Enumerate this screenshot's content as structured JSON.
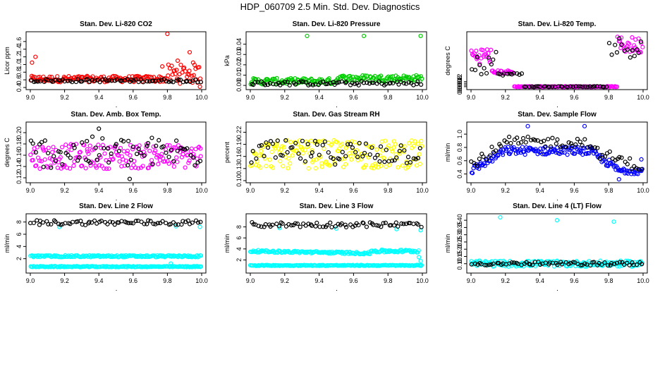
{
  "title": "HDP_060709  2.5 Min. Std. Dev. Diagnostics",
  "colors": {
    "primary_black": "#000000",
    "red": "#ff0000",
    "green": "#00cc00",
    "magenta": "#ff00ff",
    "yellow": "#ffff00",
    "blue": "#0000ff",
    "cyan": "#00ffff"
  },
  "chart_data": [
    {
      "type": "scatter",
      "title": "Stan. Dev. Li-820 CO2",
      "ylabel": "Licor ppm",
      "xlabel": "",
      "xlim": [
        9.0,
        10.0
      ],
      "ylim": [
        0.4,
        1.8
      ],
      "xticks": [
        "9.0",
        "9.2",
        "9.4",
        "9.6",
        "9.8",
        "10.0"
      ],
      "yticks": [
        "0.4",
        "0.6",
        "0.8",
        "1.0",
        "1.2",
        "1.4",
        "1.6"
      ],
      "series": [
        {
          "name": "primary",
          "color": "#ff0000",
          "pattern": [
            {
              "x0": 9.0,
              "x1": 9.8,
              "y": 0.62,
              "spread": 0.08
            },
            {
              "x0": 9.8,
              "x1": 10.0,
              "y": 0.75,
              "spread": 0.25
            }
          ],
          "outliers": [
            [
              9.01,
              1.05
            ],
            [
              9.03,
              1.2
            ],
            [
              9.8,
              1.8
            ],
            [
              9.93,
              1.32
            ],
            [
              9.95,
              1.05
            ],
            [
              9.99,
              0.42
            ],
            [
              9.86,
              1.1
            ],
            [
              9.77,
              0.95
            ]
          ]
        },
        {
          "name": "secondary",
          "color": "#000000",
          "pattern": [
            {
              "x0": 9.0,
              "x1": 10.0,
              "y": 0.58,
              "spread": 0.04
            }
          ],
          "outliers": []
        }
      ]
    },
    {
      "type": "scatter",
      "title": "Stan. Dev. Li-820 Pressure",
      "ylabel": "kPa",
      "xlabel": "",
      "xlim": [
        9.0,
        10.0
      ],
      "ylim": [
        -0.002,
        0.05
      ],
      "xticks": [
        "9.0",
        "9.2",
        "9.4",
        "9.6",
        "9.8",
        "10.0"
      ],
      "yticks": [
        "0.00",
        "0.01",
        "0.02",
        "0.03",
        "0.04"
      ],
      "series": [
        {
          "name": "primary",
          "color": "#00cc00",
          "pattern": [
            {
              "x0": 9.0,
              "x1": 9.5,
              "y": 0.004,
              "spread": 0.003
            },
            {
              "x0": 9.5,
              "x1": 10.0,
              "y": 0.007,
              "spread": 0.003
            }
          ],
          "outliers": [
            [
              9.33,
              0.048
            ],
            [
              9.66,
              0.048
            ],
            [
              9.99,
              0.048
            ]
          ]
        },
        {
          "name": "secondary",
          "color": "#000000",
          "pattern": [
            {
              "x0": 9.0,
              "x1": 10.0,
              "y": 0.002,
              "spread": 0.002
            }
          ],
          "outliers": []
        }
      ]
    },
    {
      "type": "scatter",
      "title": "Stan. Dev. Li-820 Temp.",
      "ylabel": "degrees C",
      "xlabel": "",
      "xlim": [
        9.0,
        10.0
      ],
      "ylim": [
        -0.002,
        0.127
      ],
      "xticks": [
        "9.0",
        "9.2",
        "9.4",
        "9.6",
        "9.8",
        "10.0"
      ],
      "yticks": [
        "0.000",
        "0.004",
        "0.008",
        "0.012"
      ],
      "series": [
        {
          "name": "primary",
          "color": "#ff00ff",
          "pattern": [
            {
              "x0": 9.0,
              "x1": 9.12,
              "y": 0.075,
              "spread": 0.02
            },
            {
              "x0": 9.12,
              "x1": 9.25,
              "y": 0.035,
              "spread": 0.004
            },
            {
              "x0": 9.25,
              "x1": 9.85,
              "y": 0.0,
              "spread": 0.001
            },
            {
              "x0": 9.85,
              "x1": 10.0,
              "y": 0.1,
              "spread": 0.02
            }
          ],
          "outliers": []
        },
        {
          "name": "secondary",
          "color": "#000000",
          "pattern": [
            {
              "x0": 9.0,
              "x1": 9.15,
              "y": 0.06,
              "spread": 0.03
            },
            {
              "x0": 9.15,
              "x1": 9.3,
              "y": 0.03,
              "spread": 0.003
            },
            {
              "x0": 9.3,
              "x1": 9.8,
              "y": 0.0,
              "spread": 0.001
            },
            {
              "x0": 9.8,
              "x1": 10.0,
              "y": 0.095,
              "spread": 0.025
            }
          ],
          "outliers": []
        }
      ]
    },
    {
      "type": "scatter",
      "title": "Stan. Dev. Amb. Box Temp.",
      "ylabel": "degrees C",
      "xlabel": "",
      "xlim": [
        9.0,
        10.0
      ],
      "ylim": [
        0.115,
        0.215
      ],
      "xticks": [
        "9.0",
        "9.2",
        "9.4",
        "9.6",
        "9.8",
        "10.0"
      ],
      "yticks": [
        "0.12",
        "0.14",
        "0.16",
        "0.18",
        "0.20"
      ],
      "series": [
        {
          "name": "primary",
          "color": "#ff00ff",
          "pattern": [
            {
              "x0": 9.0,
              "x1": 10.0,
              "y": 0.158,
              "spread": 0.022
            }
          ],
          "outliers": []
        },
        {
          "name": "secondary",
          "color": "#000000",
          "pattern": [
            {
              "x0": 9.0,
              "x1": 10.0,
              "y": 0.165,
              "spread": 0.028
            }
          ],
          "outliers": [
            [
              9.4,
              0.207
            ],
            [
              9.58,
              0.118
            ],
            [
              9.33,
              0.185
            ]
          ]
        }
      ]
    },
    {
      "type": "scatter",
      "title": "Stan. Dev. Gas Stream RH",
      "ylabel": "percent",
      "xlabel": "",
      "xlim": [
        9.0,
        10.0
      ],
      "ylim": [
        0.1,
        0.24
      ],
      "xticks": [
        "9.0",
        "9.2",
        "9.4",
        "9.6",
        "9.8",
        "10.0"
      ],
      "yticks": [
        "0.10",
        "0.13",
        "0.16",
        "0.19",
        "0.22"
      ],
      "series": [
        {
          "name": "primary",
          "color": "#ffff00",
          "pattern": [
            {
              "x0": 9.0,
              "x1": 10.0,
              "y": 0.165,
              "spread": 0.035
            }
          ],
          "outliers": []
        },
        {
          "name": "secondary",
          "color": "#000000",
          "pattern": [
            {
              "x0": 9.0,
              "x1": 10.0,
              "y": 0.17,
              "spread": 0.03
            }
          ],
          "outliers": []
        }
      ]
    },
    {
      "type": "scatter",
      "title": "Stan. Dev. Sample Flow",
      "ylabel": "ml/min",
      "xlabel": "",
      "xlim": [
        9.0,
        10.0
      ],
      "ylim": [
        0.3,
        1.15
      ],
      "xticks": [
        "9.0",
        "9.2",
        "9.4",
        "9.6",
        "9.8",
        "10.0"
      ],
      "yticks": [
        "0.4",
        "0.6",
        "0.8",
        "1.0"
      ],
      "series": [
        {
          "name": "primary",
          "color": "#0000ff",
          "pattern": [
            {
              "x0": 9.0,
              "x1": 9.2,
              "y0": 0.45,
              "y1": 0.75,
              "spread": 0.06
            },
            {
              "x0": 9.2,
              "x1": 9.7,
              "y": 0.75,
              "spread": 0.06
            },
            {
              "x0": 9.7,
              "x1": 9.85,
              "y0": 0.72,
              "y1": 0.48,
              "spread": 0.06
            },
            {
              "x0": 9.85,
              "x1": 10.0,
              "y": 0.45,
              "spread": 0.05
            }
          ],
          "outliers": [
            [
              9.33,
              1.12
            ],
            [
              9.66,
              1.12
            ],
            [
              9.99,
              0.62
            ],
            [
              9.86,
              0.32
            ]
          ]
        },
        {
          "name": "secondary",
          "color": "#000000",
          "pattern": [
            {
              "x0": 9.0,
              "x1": 9.2,
              "y0": 0.55,
              "y1": 0.85,
              "spread": 0.08
            },
            {
              "x0": 9.2,
              "x1": 9.7,
              "y": 0.88,
              "spread": 0.08
            },
            {
              "x0": 9.7,
              "x1": 10.0,
              "y0": 0.75,
              "y1": 0.5,
              "spread": 0.08
            }
          ],
          "outliers": []
        }
      ]
    },
    {
      "type": "scatter",
      "title": "Stan. Dev. Line 2 Flow",
      "ylabel": "ml/min",
      "xlabel": "",
      "xlim": [
        9.0,
        10.0
      ],
      "ylim": [
        0.0,
        9.0
      ],
      "xticks": [
        "9.0",
        "9.2",
        "9.4",
        "9.6",
        "9.8",
        "10.0"
      ],
      "yticks": [
        "2",
        "4",
        "6",
        "8"
      ],
      "series": [
        {
          "name": "primary",
          "color": "#00ffff",
          "pattern": [
            {
              "x0": 9.0,
              "x1": 10.0,
              "y": 2.4,
              "spread": 0.15
            },
            {
              "x0": 9.0,
              "x1": 10.0,
              "y": 0.7,
              "spread": 0.08
            }
          ],
          "outliers": [
            [
              9.17,
              7.2
            ],
            [
              9.85,
              7.3
            ],
            [
              9.99,
              7.2
            ],
            [
              9.82,
              1.2
            ]
          ]
        },
        {
          "name": "secondary",
          "color": "#000000",
          "pattern": [
            {
              "x0": 9.0,
              "x1": 10.0,
              "y": 7.9,
              "spread": 0.4
            }
          ],
          "outliers": []
        }
      ]
    },
    {
      "type": "scatter",
      "title": "Stan. Dev. Line 3 Flow",
      "ylabel": "ml/min",
      "xlabel": "",
      "xlim": [
        9.0,
        10.0
      ],
      "ylim": [
        0.0,
        10.0
      ],
      "xticks": [
        "9.0",
        "9.2",
        "9.4",
        "9.6",
        "9.8",
        "10.0"
      ],
      "yticks": [
        "2",
        "4",
        "6",
        "8"
      ],
      "series": [
        {
          "name": "primary",
          "color": "#00ffff",
          "pattern": [
            {
              "x0": 9.0,
              "x1": 9.7,
              "y0": 3.6,
              "y1": 3.2,
              "spread": 0.2
            },
            {
              "x0": 9.7,
              "x1": 9.98,
              "y": 3.6,
              "spread": 0.25
            },
            {
              "x0": 9.0,
              "x1": 10.0,
              "y": 1.0,
              "spread": 0.08
            }
          ],
          "outliers": [
            [
              9.98,
              2.5
            ],
            [
              9.99,
              1.8
            ],
            [
              9.17,
              7.8
            ],
            [
              9.5,
              7.7
            ],
            [
              9.85,
              7.6
            ],
            [
              9.99,
              7.4
            ]
          ]
        },
        {
          "name": "secondary",
          "color": "#000000",
          "pattern": [
            {
              "x0": 9.0,
              "x1": 10.0,
              "y": 8.4,
              "spread": 0.45
            }
          ],
          "outliers": []
        }
      ]
    },
    {
      "type": "scatter",
      "title": "Stan. Dev. Line 4 (LT) Flow",
      "ylabel": "ml/min",
      "xlabel": "",
      "xlim": [
        9.0,
        10.0
      ],
      "ylim": [
        0.05,
        0.43
      ],
      "xticks": [
        "9.0",
        "9.2",
        "9.4",
        "9.6",
        "9.8",
        "10.0"
      ],
      "yticks": [
        "0.10",
        "0.15",
        "0.20",
        "0.25",
        "0.30",
        "0.35",
        "0.40"
      ],
      "series": [
        {
          "name": "primary",
          "color": "#00ffff",
          "pattern": [
            {
              "x0": 9.0,
              "x1": 10.0,
              "y": 0.1,
              "spread": 0.02
            }
          ],
          "outliers": [
            [
              9.17,
              0.42
            ],
            [
              9.5,
              0.4
            ],
            [
              9.83,
              0.39
            ]
          ]
        },
        {
          "name": "secondary",
          "color": "#000000",
          "pattern": [
            {
              "x0": 9.0,
              "x1": 10.0,
              "y": 0.1,
              "spread": 0.012
            }
          ],
          "outliers": []
        }
      ]
    }
  ]
}
